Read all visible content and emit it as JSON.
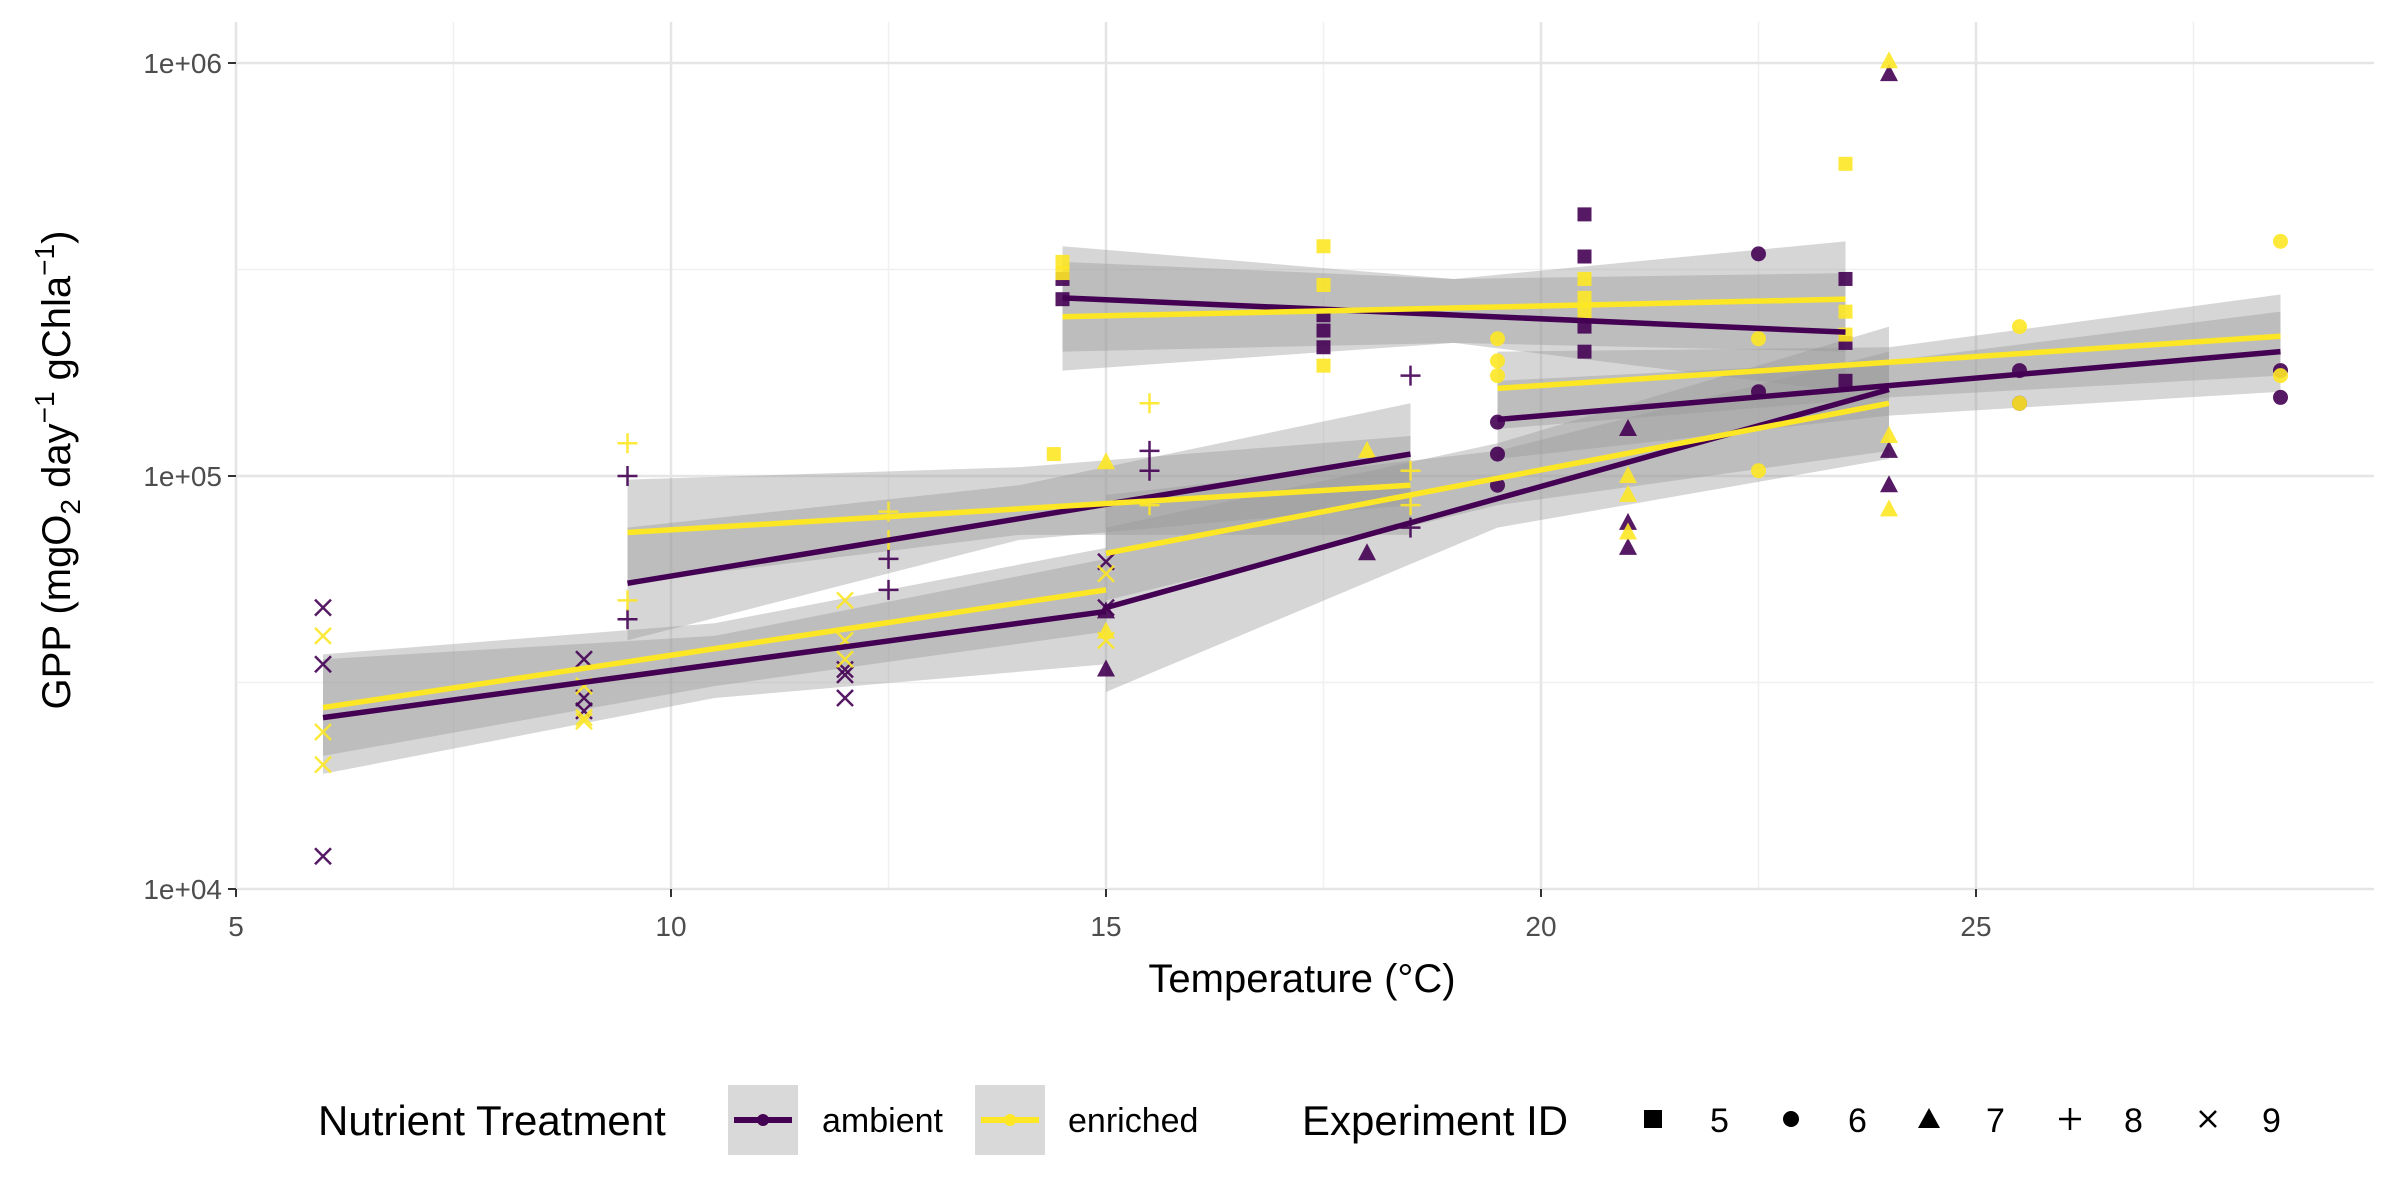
{
  "chart_data": {
    "type": "scatter",
    "title": "",
    "xlabel": "Temperature (°C)",
    "ylabel": {
      "pre": "GPP (mgO",
      "sub": "2",
      "mid1": " day",
      "sup1": "−1",
      "mid2": " gChla",
      "sup2": "−1",
      "post": ")"
    },
    "xlim": [
      5,
      29.6
    ],
    "ylim": [
      10000,
      1200000
    ],
    "yscale": "log10",
    "x_ticks": [
      5,
      10,
      15,
      20,
      25
    ],
    "x_tick_labels": [
      "5",
      "10",
      "15",
      "20",
      "25"
    ],
    "y_ticks": [
      10000,
      100000,
      1000000
    ],
    "y_tick_labels": [
      "1e+04",
      "1e+05",
      "1e+06"
    ],
    "grid": true,
    "legend": {
      "placement": "bottom",
      "color_title": "Nutrient Treatment",
      "shape_title": "Experiment ID",
      "treatments": [
        {
          "key": "ambient",
          "label": "ambient"
        },
        {
          "key": "enriched",
          "label": "enriched"
        }
      ],
      "experiments": [
        {
          "key": "5",
          "label": "5",
          "shape": "square"
        },
        {
          "key": "6",
          "label": "6",
          "shape": "circle"
        },
        {
          "key": "7",
          "label": "7",
          "shape": "triangle"
        },
        {
          "key": "8",
          "label": "8",
          "shape": "plus"
        },
        {
          "key": "9",
          "label": "9",
          "shape": "cross"
        }
      ]
    },
    "colors": {
      "ambient": "#440154",
      "enriched": "#fde725",
      "ribbon": "#999999",
      "grid": "#e5e5e5"
    },
    "series": [
      {
        "experiment": "5",
        "treatment": "ambient",
        "fit": [
          [
            14.5,
            270000
          ],
          [
            23.5,
            223000
          ]
        ],
        "ci": [
          [
            14.5,
            200000,
            360000
          ],
          [
            19,
            210000,
            300000
          ],
          [
            23.5,
            160000,
            310000
          ]
        ],
        "points": [
          [
            14.5,
            268000
          ],
          [
            14.5,
            300000
          ],
          [
            17.5,
            205000
          ],
          [
            17.5,
            225000
          ],
          [
            17.5,
            245000
          ],
          [
            20.5,
            430000
          ],
          [
            20.5,
            340000
          ],
          [
            20.5,
            200000
          ],
          [
            20.5,
            230000
          ],
          [
            23.5,
            210000
          ],
          [
            23.5,
            300000
          ],
          [
            23.5,
            170000
          ]
        ]
      },
      {
        "experiment": "5",
        "treatment": "enriched",
        "fit": [
          [
            14.5,
            243000
          ],
          [
            23.5,
            268000
          ]
        ],
        "ci": [
          [
            14.5,
            180000,
            330000
          ],
          [
            19,
            210000,
            300000
          ],
          [
            23.5,
            200000,
            370000
          ]
        ],
        "points": [
          [
            14.5,
            310000
          ],
          [
            14.5,
            330000
          ],
          [
            14.4,
            113000
          ],
          [
            17.5,
            360000
          ],
          [
            17.5,
            290000
          ],
          [
            17.5,
            185000
          ],
          [
            20.5,
            300000
          ],
          [
            20.5,
            270000
          ],
          [
            20.5,
            250000
          ],
          [
            23.5,
            570000
          ],
          [
            23.5,
            250000
          ],
          [
            23.5,
            220000
          ]
        ]
      },
      {
        "experiment": "6",
        "treatment": "ambient",
        "fit": [
          [
            19.5,
            137000
          ],
          [
            28.5,
            200000
          ]
        ],
        "ci": [
          [
            19.5,
            110000,
            170000
          ],
          [
            24,
            140000,
            190000
          ],
          [
            28.5,
            160000,
            250000
          ]
        ],
        "points": [
          [
            19.5,
            135000
          ],
          [
            19.5,
            113000
          ],
          [
            19.5,
            95000
          ],
          [
            22.5,
            345000
          ],
          [
            22.5,
            160000
          ],
          [
            25.5,
            180000
          ],
          [
            25.5,
            150000
          ],
          [
            28.5,
            155000
          ],
          [
            28.5,
            180000
          ]
        ]
      },
      {
        "experiment": "6",
        "treatment": "enriched",
        "fit": [
          [
            19.5,
            163000
          ],
          [
            28.5,
            218000
          ]
        ],
        "ci": [
          [
            19.5,
            130000,
            200000
          ],
          [
            24,
            155000,
            205000
          ],
          [
            28.5,
            175000,
            275000
          ]
        ],
        "points": [
          [
            19.5,
            215000
          ],
          [
            19.5,
            190000
          ],
          [
            19.5,
            175000
          ],
          [
            22.5,
            215000
          ],
          [
            22.5,
            103000
          ],
          [
            25.5,
            230000
          ],
          [
            25.5,
            150000
          ],
          [
            28.5,
            370000
          ],
          [
            28.5,
            175000
          ]
        ]
      },
      {
        "experiment": "7",
        "treatment": "ambient",
        "fit": [
          [
            15,
            48000
          ],
          [
            24,
            162000
          ]
        ],
        "ci": [
          [
            15,
            30000,
            75000
          ],
          [
            19.5,
            75000,
            120000
          ],
          [
            24,
            110000,
            230000
          ]
        ],
        "points": [
          [
            15,
            34000
          ],
          [
            15,
            47000
          ],
          [
            18,
            65000
          ],
          [
            21,
            130000
          ],
          [
            21,
            77000
          ],
          [
            21,
            67000
          ],
          [
            24,
            940000
          ],
          [
            24,
            115000
          ],
          [
            24,
            95000
          ]
        ]
      },
      {
        "experiment": "7",
        "treatment": "enriched",
        "fit": [
          [
            15,
            65000
          ],
          [
            24,
            150000
          ]
        ],
        "ci": [
          [
            15,
            50000,
            90000
          ],
          [
            19.5,
            85000,
            115000
          ],
          [
            24,
            115000,
            200000
          ]
        ],
        "points": [
          [
            15,
            108000
          ],
          [
            15,
            42000
          ],
          [
            18,
            115000
          ],
          [
            21,
            100000
          ],
          [
            21,
            90000
          ],
          [
            21,
            73000
          ],
          [
            24,
            1010000
          ],
          [
            24,
            125000
          ],
          [
            24,
            83000
          ]
        ]
      },
      {
        "experiment": "8",
        "treatment": "ambient",
        "fit": [
          [
            9.5,
            55000
          ],
          [
            18.5,
            113000
          ]
        ],
        "ci": [
          [
            9.5,
            40000,
            75000
          ],
          [
            14,
            70000,
            95000
          ],
          [
            18.5,
            85000,
            150000
          ]
        ],
        "points": [
          [
            9.5,
            100000
          ],
          [
            9.5,
            45000
          ],
          [
            12.5,
            63000
          ],
          [
            12.5,
            53000
          ],
          [
            15.5,
            115000
          ],
          [
            15.5,
            103000
          ],
          [
            18.5,
            175000
          ],
          [
            18.5,
            75000
          ]
        ]
      },
      {
        "experiment": "8",
        "treatment": "enriched",
        "fit": [
          [
            9.5,
            73000
          ],
          [
            18.5,
            95000
          ]
        ],
        "ci": [
          [
            9.5,
            55000,
            98000
          ],
          [
            14,
            72000,
            105000
          ],
          [
            18.5,
            72000,
            125000
          ]
        ],
        "points": [
          [
            9.5,
            120000
          ],
          [
            9.5,
            50000
          ],
          [
            12.5,
            82000
          ],
          [
            12.5,
            70000
          ],
          [
            15.5,
            150000
          ],
          [
            15.5,
            85000
          ],
          [
            18.5,
            103000
          ],
          [
            18.5,
            85000
          ]
        ]
      },
      {
        "experiment": "9",
        "treatment": "ambient",
        "fit": [
          [
            6,
            26000
          ],
          [
            15,
            47000
          ]
        ],
        "ci": [
          [
            6,
            19000,
            36000
          ],
          [
            10.5,
            29000,
            41000
          ],
          [
            15,
            35000,
            63000
          ]
        ],
        "points": [
          [
            6,
            48000
          ],
          [
            6,
            35000
          ],
          [
            6,
            12000
          ],
          [
            9,
            36000
          ],
          [
            9,
            29000
          ],
          [
            9,
            27000
          ],
          [
            12,
            34000
          ],
          [
            12,
            33000
          ],
          [
            12,
            29000
          ],
          [
            15,
            62000
          ],
          [
            15,
            48000
          ]
        ]
      },
      {
        "experiment": "9",
        "treatment": "enriched",
        "fit": [
          [
            6,
            27500
          ],
          [
            15,
            53000
          ]
        ],
        "ci": [
          [
            6,
            21000,
            37000
          ],
          [
            10.5,
            31000,
            44000
          ],
          [
            15,
            42000,
            67000
          ]
        ],
        "points": [
          [
            6,
            41000
          ],
          [
            6,
            24000
          ],
          [
            6,
            20000
          ],
          [
            9,
            31000
          ],
          [
            9,
            26000
          ],
          [
            9,
            25500
          ],
          [
            12,
            50000
          ],
          [
            12,
            40000
          ],
          [
            12,
            36000
          ],
          [
            15,
            58000
          ],
          [
            15,
            40000
          ]
        ]
      }
    ]
  }
}
